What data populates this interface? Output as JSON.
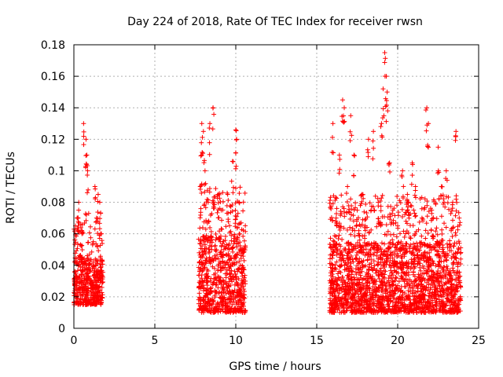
{
  "chart_data": {
    "type": "scatter",
    "title": "Day 224 of 2018, Rate Of TEC Index for receiver rwsn",
    "xlabel": "GPS time / hours",
    "ylabel": "ROTI / TECUs",
    "xlim": [
      0,
      25
    ],
    "ylim": [
      0,
      0.18
    ],
    "x_ticks": [
      0,
      5,
      10,
      15,
      20,
      25
    ],
    "y_ticks": [
      0,
      0.02,
      0.04,
      0.06,
      0.08,
      0.1,
      0.12,
      0.14,
      0.16,
      0.18
    ],
    "x_tick_labels": [
      "0",
      "5",
      "10",
      "15",
      "20",
      "25"
    ],
    "y_tick_labels": [
      "0",
      "0.02",
      "0.04",
      "0.06",
      "0.08",
      "0.1",
      "0.12",
      "0.14",
      "0.16",
      "0.18"
    ],
    "grid": true,
    "marker": "+",
    "color": "#ff0000",
    "series": [
      {
        "segments": [
          {
            "x_start": 0.0,
            "x_end": 1.8,
            "baseline": [
              0.015,
              0.045
            ],
            "outliers": [
              [
                0.6,
                0.13
              ],
              [
                0.75,
                0.12
              ],
              [
                0.8,
                0.11
              ],
              [
                0.85,
                0.1
              ],
              [
                0.3,
                0.08
              ],
              [
                0.2,
                0.07
              ],
              [
                1.3,
                0.09
              ],
              [
                1.5,
                0.085
              ],
              [
                1.6,
                0.08
              ],
              [
                1.4,
                0.07
              ],
              [
                0.1,
                0.065
              ],
              [
                1.7,
                0.06
              ],
              [
                0.5,
                0.06
              ],
              [
                1.2,
                0.055
              ]
            ]
          },
          {
            "x_start": 7.7,
            "x_end": 10.6,
            "baseline": [
              0.01,
              0.06
            ],
            "outliers": [
              [
                8.6,
                0.14
              ],
              [
                7.9,
                0.13
              ],
              [
                8.0,
                0.125
              ],
              [
                8.4,
                0.13
              ],
              [
                10.0,
                0.126
              ],
              [
                10.05,
                0.12
              ],
              [
                9.8,
                0.106
              ],
              [
                7.9,
                0.11
              ],
              [
                8.1,
                0.1
              ],
              [
                7.8,
                0.09
              ],
              [
                8.9,
                0.085
              ],
              [
                9.5,
                0.085
              ],
              [
                10.2,
                0.08
              ],
              [
                8.3,
                0.08
              ],
              [
                9.1,
                0.075
              ]
            ]
          },
          {
            "x_start": 15.8,
            "x_end": 23.9,
            "baseline": [
              0.01,
              0.055
            ],
            "outliers": [
              [
                19.2,
                0.175
              ],
              [
                19.3,
                0.16
              ],
              [
                19.35,
                0.15
              ],
              [
                19.1,
                0.152
              ],
              [
                16.6,
                0.145
              ],
              [
                16.7,
                0.14
              ],
              [
                21.8,
                0.14
              ],
              [
                21.9,
                0.13
              ],
              [
                19.0,
                0.13
              ],
              [
                17.1,
                0.135
              ],
              [
                16.0,
                0.13
              ],
              [
                23.6,
                0.125
              ],
              [
                18.5,
                0.125
              ],
              [
                17.3,
                0.11
              ],
              [
                20.9,
                0.105
              ],
              [
                19.5,
                0.105
              ],
              [
                22.5,
                0.115
              ],
              [
                16.4,
                0.11
              ],
              [
                18.2,
                0.12
              ],
              [
                23.0,
                0.1
              ],
              [
                20.3,
                0.1
              ],
              [
                21.1,
                0.09
              ],
              [
                22.7,
                0.09
              ],
              [
                17.8,
                0.085
              ],
              [
                16.9,
                0.09
              ],
              [
                18.8,
                0.08
              ],
              [
                20.6,
                0.085
              ],
              [
                23.4,
                0.08
              ],
              [
                22.1,
                0.075
              ],
              [
                19.7,
                0.075
              ],
              [
                16.2,
                0.07
              ],
              [
                17.5,
                0.075
              ],
              [
                21.5,
                0.07
              ],
              [
                23.8,
                0.07
              ],
              [
                18.0,
                0.065
              ],
              [
                20.0,
                0.065
              ]
            ]
          }
        ]
      }
    ]
  }
}
